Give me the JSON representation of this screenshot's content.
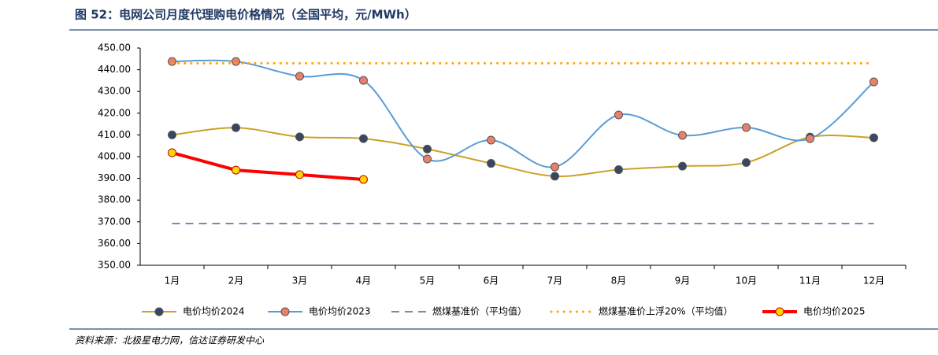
{
  "chart_data": {
    "type": "line",
    "title": "图 52：电网公司月度代理购电价格情况（全国平均，元/MWh）",
    "source": "资料来源：北极星电力网，信达证券研发中心",
    "categories": [
      "1月",
      "2月",
      "3月",
      "4月",
      "5月",
      "6月",
      "7月",
      "8月",
      "9月",
      "10月",
      "11月",
      "12月"
    ],
    "ylim": [
      350,
      450
    ],
    "yticks": [
      {
        "value": 350,
        "label": "350.00"
      },
      {
        "value": 360,
        "label": "360.00"
      },
      {
        "value": 370,
        "label": "370.00"
      },
      {
        "value": 380,
        "label": "380.00"
      },
      {
        "value": 390,
        "label": "390.00"
      },
      {
        "value": 400,
        "label": "400.00"
      },
      {
        "value": 410,
        "label": "410.00"
      },
      {
        "value": 420,
        "label": "420.00"
      },
      {
        "value": 430,
        "label": "430.00"
      },
      {
        "value": 440,
        "label": "440.00"
      },
      {
        "value": 450,
        "label": "450.00"
      }
    ],
    "grid": false,
    "legend": "bottom",
    "series": [
      {
        "name": "电价均价2024",
        "color": "#c9a227",
        "marker_color": "#3b4662",
        "line_style": "solid",
        "smooth": true,
        "width": 2,
        "values": [
          410.0,
          413.3,
          409.1,
          408.3,
          403.5,
          396.9,
          391.0,
          394.0,
          395.6,
          397.3,
          409.0,
          408.7
        ]
      },
      {
        "name": "电价均价2023",
        "color": "#5b9bd5",
        "marker_color": "#e8806a",
        "line_style": "solid",
        "smooth": true,
        "width": 2,
        "values": [
          443.8,
          443.8,
          437.0,
          435.1,
          398.9,
          407.6,
          395.3,
          419.2,
          409.8,
          413.4,
          408.3,
          434.4
        ]
      },
      {
        "name": "燃煤基准价（平均值）",
        "color": "#7b88b0",
        "line_style": "dashed",
        "smooth": false,
        "width": 2,
        "values": [
          369.2,
          369.2,
          369.2,
          369.2,
          369.2,
          369.2,
          369.2,
          369.2,
          369.2,
          369.2,
          369.2,
          369.2
        ]
      },
      {
        "name": "燃煤基准价上浮20%（平均值）",
        "color": "#ffa500",
        "line_style": "dotted",
        "smooth": false,
        "width": 3,
        "values": [
          443.0,
          443.0,
          443.0,
          443.0,
          443.0,
          443.0,
          443.0,
          443.0,
          443.0,
          443.0,
          443.0,
          443.0
        ]
      },
      {
        "name": "电价均价2025",
        "color": "#ff0000",
        "marker_color": "#ffd700",
        "line_style": "solid",
        "smooth": false,
        "width": 4,
        "values": [
          401.8,
          393.8,
          391.7,
          389.5,
          null,
          null,
          null,
          null,
          null,
          null,
          null,
          null
        ]
      }
    ]
  }
}
